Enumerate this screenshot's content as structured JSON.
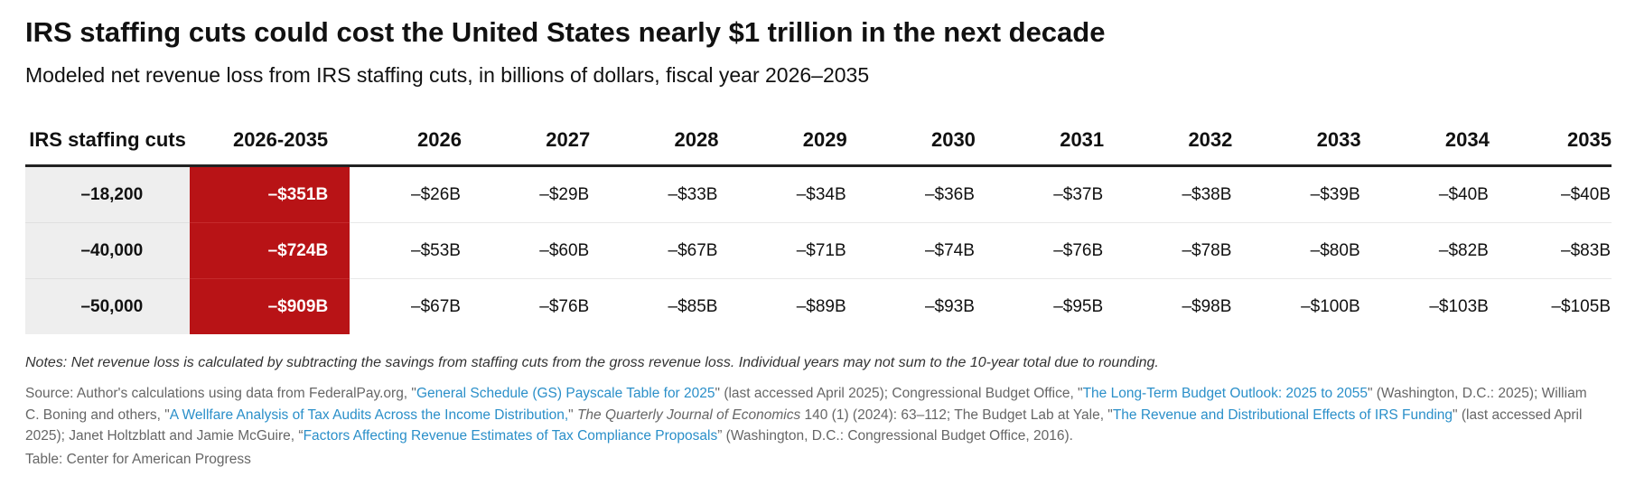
{
  "title": "IRS staffing cuts could cost the United States nearly $1 trillion in the next decade",
  "subtitle": "Modeled net revenue loss from IRS staffing cuts, in billions of dollars, fiscal year 2026–2035",
  "chart_data": {
    "type": "table",
    "columns": [
      "IRS staffing cuts",
      "2026-2035",
      "2026",
      "2027",
      "2028",
      "2029",
      "2030",
      "2031",
      "2032",
      "2033",
      "2034",
      "2035"
    ],
    "rows": [
      {
        "label": "–18,200",
        "total": "–$351B",
        "years": [
          "–$26B",
          "–$29B",
          "–$33B",
          "–$34B",
          "–$36B",
          "–$37B",
          "–$38B",
          "–$39B",
          "–$40B",
          "–$40B"
        ]
      },
      {
        "label": "–40,000",
        "total": "–$724B",
        "years": [
          "–$53B",
          "–$60B",
          "–$67B",
          "–$71B",
          "–$74B",
          "–$76B",
          "–$78B",
          "–$80B",
          "–$82B",
          "–$83B"
        ]
      },
      {
        "label": "–50,000",
        "total": "–$909B",
        "years": [
          "–$67B",
          "–$76B",
          "–$85B",
          "–$89B",
          "–$93B",
          "–$95B",
          "–$98B",
          "–$100B",
          "–$103B",
          "–$105B"
        ]
      }
    ],
    "total_highlight_color": "#b81316",
    "label_column_background": "#eeeeee"
  },
  "notes": "Notes: Net revenue loss is calculated by subtracting the savings from staffing cuts from the gross revenue loss. Individual years may not sum to the 10-year total due to rounding.",
  "source": {
    "p1": "Source: Author's calculations using data from FederalPay.org, \"",
    "l1": "General Schedule (GS) Payscale Table for 2025",
    "p2": "\" (last accessed April 2025); Congressional Budget Office, \"",
    "l2": "The Long-Term Budget Outlook: 2025 to 2055",
    "p3": "\" (Washington, D.C.: 2025); William C. Boning and others, \"",
    "l3": "A Wellfare Analysis of Tax Audits Across the Income Distribution,",
    "p4": "\" ",
    "journal": "The Quarterly Journal of Economics",
    "p5": " 140 (1) (2024): 63–112; The Budget Lab at Yale, \"",
    "l4": "The Revenue and Distributional Effects of IRS Funding",
    "p6": "\" (last accessed April 2025); Janet Holtzblatt and Jamie McGuire, “",
    "l5": "Factors Affecting Revenue Estimates of Tax Compliance Proposals",
    "p7": "” (Washington, D.C.: Congressional Budget Office, 2016).",
    "link_color": "#2a8fc9"
  },
  "credit": "Table: Center for American Progress"
}
